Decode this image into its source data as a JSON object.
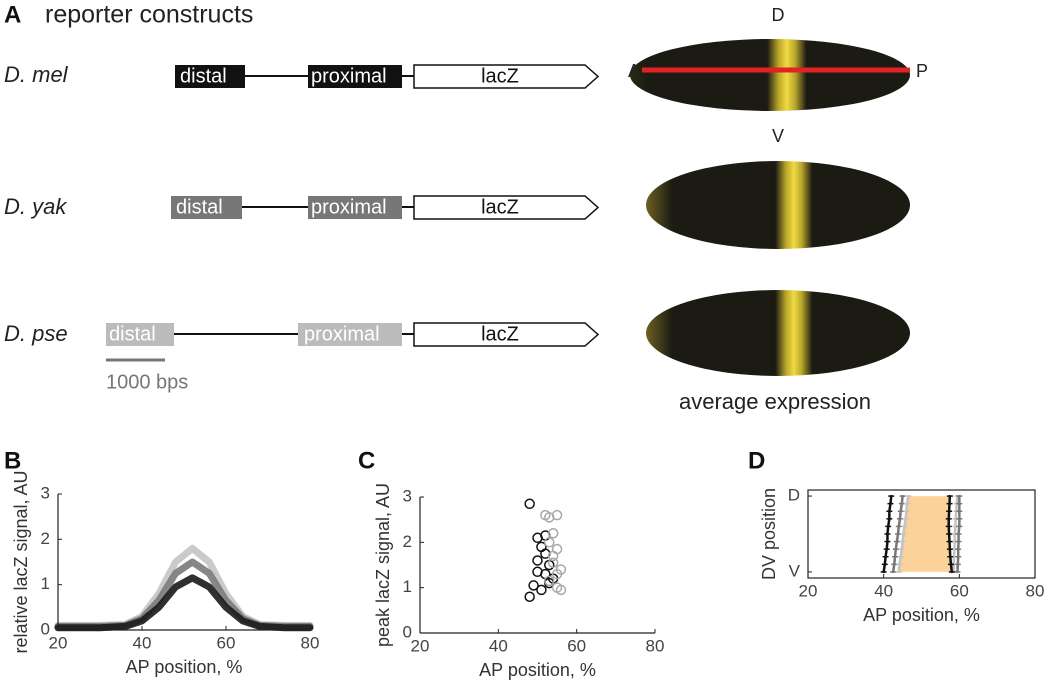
{
  "panel_a": {
    "panel_label": "A",
    "title": "reporter constructs",
    "constructs": [
      {
        "species": "D. mel",
        "distal": "distal",
        "proximal": "proximal",
        "reporter": "lacZ"
      },
      {
        "species": "D. yak",
        "distal": "distal",
        "proximal": "proximal",
        "reporter": "lacZ"
      },
      {
        "species": "D. pse",
        "distal": "distal",
        "proximal": "proximal",
        "reporter": "lacZ"
      }
    ],
    "scale_bar": "1000 bps",
    "embryo_labels": {
      "dorsal": "D",
      "ventral": "V",
      "anterior": "A",
      "posterior": "P"
    },
    "embryo_caption": "average expression"
  },
  "chart_data": [
    {
      "type": "line",
      "panel_label": "B",
      "xlabel": "AP position, %",
      "ylabel": "relative lacZ signal, AU",
      "x": [
        20,
        30,
        36,
        40,
        44,
        48,
        52,
        56,
        60,
        64,
        68,
        74,
        80
      ],
      "series": [
        {
          "color": "#c4c4c4",
          "values": [
            0.1,
            0.1,
            0.12,
            0.3,
            0.8,
            1.5,
            1.8,
            1.5,
            0.8,
            0.3,
            0.12,
            0.1,
            0.1
          ]
        },
        {
          "color": "#7a7a7a",
          "values": [
            0.08,
            0.08,
            0.1,
            0.25,
            0.65,
            1.25,
            1.5,
            1.25,
            0.65,
            0.25,
            0.1,
            0.08,
            0.08
          ]
        },
        {
          "color": "#1a1a1a",
          "values": [
            0.05,
            0.05,
            0.08,
            0.2,
            0.5,
            0.95,
            1.15,
            0.95,
            0.5,
            0.2,
            0.08,
            0.05,
            0.05
          ]
        }
      ],
      "xlim": [
        20,
        80
      ],
      "ylim": [
        0,
        3
      ],
      "xticks": [
        20,
        40,
        60,
        80
      ],
      "yticks": [
        0,
        1,
        2,
        3
      ]
    },
    {
      "type": "scatter",
      "panel_label": "C",
      "xlabel": "AP position, %",
      "ylabel": "peak lacZ signal, AU",
      "series": [
        {
          "color": "#111111",
          "x": [
            48,
            50,
            52,
            51,
            50,
            53,
            50,
            52,
            54,
            49,
            51,
            48,
            53,
            52
          ],
          "values": [
            2.85,
            2.1,
            2.15,
            1.9,
            1.6,
            1.5,
            1.35,
            1.3,
            1.2,
            1.05,
            0.95,
            0.8,
            1.1,
            1.75
          ]
        },
        {
          "color": "#a8a8a8",
          "x": [
            53,
            52,
            55,
            54,
            53,
            55,
            54,
            56,
            55,
            53,
            55,
            56,
            54
          ],
          "values": [
            2.55,
            2.6,
            2.6,
            2.2,
            2.0,
            1.85,
            1.7,
            1.4,
            1.3,
            1.15,
            1.0,
            0.95,
            1.55
          ]
        }
      ],
      "xlim": [
        20,
        80
      ],
      "ylim": [
        0,
        3
      ],
      "xticks": [
        20,
        40,
        60,
        80
      ],
      "yticks": [
        0,
        1,
        2,
        3
      ]
    },
    {
      "type": "line",
      "orientation": "vertical",
      "panel_label": "D",
      "xlabel": "AP position, %",
      "ylabel": "DV position",
      "y": [
        1,
        0.9,
        0.8,
        0.7,
        0.6,
        0.5,
        0.4,
        0.3,
        0.2,
        0.1,
        0
      ],
      "fill_color": "#fbd39a",
      "series": [
        {
          "color": "#111111",
          "values": [
            42,
            41.8,
            41.5,
            41.5,
            41.2,
            41,
            41,
            40.8,
            40.5,
            40.3,
            40
          ]
        },
        {
          "color": "#777777",
          "values": [
            45,
            44.8,
            44.5,
            44.3,
            44,
            43.8,
            43.5,
            43.2,
            43,
            42.8,
            42.5
          ]
        },
        {
          "color": "#c4c4c4",
          "values": [
            46.5,
            46.2,
            46,
            45.8,
            45.5,
            45.2,
            45,
            44.8,
            44.5,
            44.2,
            44
          ]
        },
        {
          "color": "#c4c4c4",
          "values": [
            59.5,
            59.3,
            59.2,
            59,
            59,
            58.8,
            58.8,
            58.7,
            58.6,
            58.5,
            58.5
          ]
        },
        {
          "color": "#777777",
          "values": [
            60,
            60,
            60,
            60,
            60,
            59.8,
            59.8,
            59.7,
            59.7,
            59.6,
            59.5
          ]
        },
        {
          "color": "#111111",
          "values": [
            57.5,
            57.4,
            57.3,
            57.2,
            57.2,
            57.3,
            57.4,
            57.5,
            57.6,
            57.8,
            58
          ]
        }
      ],
      "xlim": [
        20,
        80
      ],
      "ylim": [
        -0.08,
        1.08
      ],
      "xticks": [
        20,
        40,
        60,
        80
      ],
      "yticks": [
        {
          "value": 1,
          "label": "D"
        },
        {
          "value": 0,
          "label": "V"
        }
      ],
      "frame": true
    }
  ]
}
